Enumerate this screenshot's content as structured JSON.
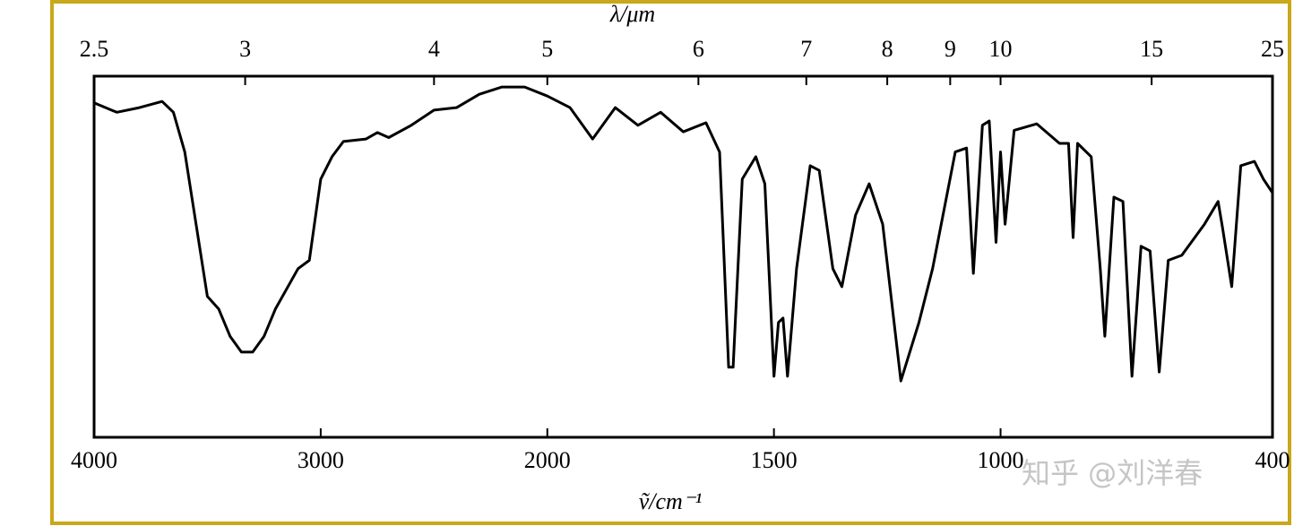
{
  "chart_data": {
    "type": "line",
    "x_label_top": "λ/μm",
    "x_label": "ṽ/cm⁻¹",
    "watermark": "知乎 @刘洋春",
    "xlim": [
      4000,
      400
    ],
    "xticks": [
      4000,
      3000,
      2000,
      1500,
      1000,
      400
    ],
    "x2ticks": [
      2.5,
      3,
      4,
      5,
      6,
      7,
      8,
      9,
      10,
      15,
      25
    ],
    "ylim": [
      0,
      100
    ],
    "x_scale_break": 2000,
    "x": [
      4000,
      3900,
      3800,
      3700,
      3650,
      3600,
      3550,
      3500,
      3450,
      3400,
      3350,
      3300,
      3250,
      3200,
      3100,
      3050,
      3000,
      2950,
      2900,
      2800,
      2750,
      2700,
      2600,
      2500,
      2400,
      2300,
      2200,
      2100,
      2000,
      1950,
      1900,
      1850,
      1800,
      1750,
      1700,
      1650,
      1620,
      1600,
      1590,
      1570,
      1540,
      1520,
      1500,
      1490,
      1480,
      1470,
      1450,
      1420,
      1400,
      1370,
      1350,
      1320,
      1290,
      1260,
      1220,
      1180,
      1150,
      1100,
      1075,
      1060,
      1040,
      1025,
      1010,
      1000,
      990,
      970,
      920,
      870,
      850,
      840,
      830,
      800,
      780,
      770,
      750,
      730,
      710,
      690,
      670,
      650,
      630,
      600,
      550,
      520,
      510,
      490,
      470,
      440,
      420,
      400
    ],
    "series": [
      {
        "color": "#000000",
        "values": [
          92.6,
          90,
          91.3,
          93,
          90,
          79,
          59,
          39,
          35.5,
          28,
          23.6,
          23.6,
          28,
          35.5,
          46.7,
          49,
          71.5,
          77.7,
          81.9,
          82.6,
          84.4,
          83,
          86.4,
          90.6,
          91.3,
          95,
          97,
          97,
          94.5,
          91.3,
          82.6,
          91.3,
          86.4,
          90,
          84.6,
          87.1,
          79,
          19.4,
          19.4,
          71.5,
          77.7,
          70.2,
          16.9,
          31.8,
          33,
          16.9,
          46.7,
          75.2,
          73.9,
          46.7,
          41.7,
          61.5,
          70.2,
          59,
          15.6,
          31.8,
          46.7,
          79,
          80.1,
          45.4,
          86.4,
          87.6,
          54,
          79,
          59,
          85,
          86.8,
          81.4,
          81.4,
          55.3,
          81.4,
          77.7,
          46.7,
          28,
          66.5,
          65.3,
          16.9,
          52.9,
          51.6,
          18.1,
          49,
          50.4,
          59,
          65.3,
          57.8,
          41.7,
          75.2,
          76.4,
          71.5,
          67.7
        ]
      }
    ]
  }
}
